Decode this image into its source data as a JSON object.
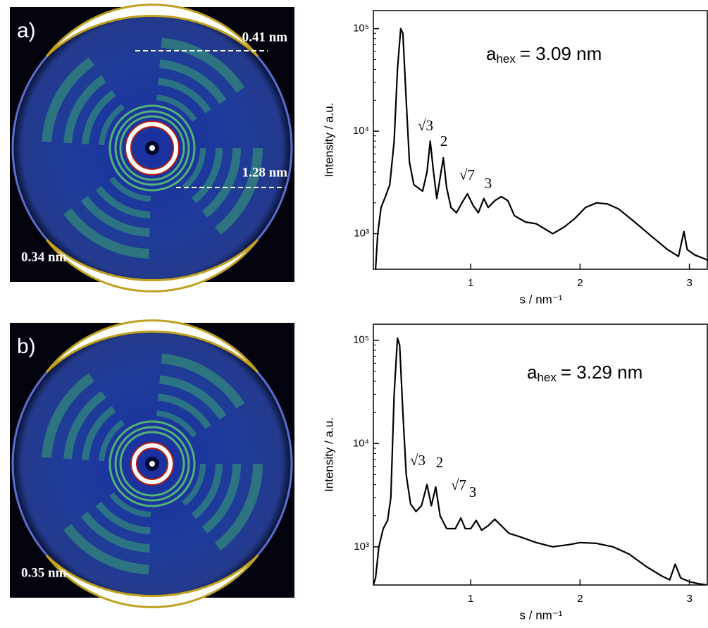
{
  "images": [
    {
      "label": "a)",
      "annotations": [
        "0.41 nm",
        "1.28 nm",
        "0.34 nm"
      ]
    },
    {
      "label": "b)",
      "annotations": [
        "0.35 nm"
      ]
    }
  ],
  "chart_data": [
    {
      "type": "line",
      "color": "#000000",
      "log_y": true,
      "x_label": "s / nm⁻¹",
      "y_label": "Intensity / a.u.",
      "annotation": {
        "symbol": "a",
        "subscript": "hex",
        "text": "=  3.09 nm"
      },
      "peak_labels": [
        "√3",
        "2",
        "√7",
        "3"
      ],
      "xlim": [
        0.11,
        3.17
      ],
      "xticks": [
        1,
        2,
        3
      ],
      "ylim": [
        450,
        150000
      ],
      "yticks": [
        {
          "value": 1000,
          "label": "10³"
        },
        {
          "value": 10000,
          "label": "10⁴"
        },
        {
          "value": 100000,
          "label": "10⁵"
        }
      ],
      "x": [
        0.13,
        0.15,
        0.18,
        0.22,
        0.26,
        0.3,
        0.33,
        0.36,
        0.38,
        0.41,
        0.44,
        0.48,
        0.52,
        0.56,
        0.6,
        0.63,
        0.66,
        0.69,
        0.72,
        0.75,
        0.78,
        0.82,
        0.87,
        0.92,
        0.97,
        1.02,
        1.07,
        1.12,
        1.16,
        1.22,
        1.28,
        1.34,
        1.4,
        1.5,
        1.6,
        1.75,
        1.85,
        1.95,
        2.05,
        2.15,
        2.25,
        2.35,
        2.5,
        2.65,
        2.8,
        2.9,
        2.95,
        2.98,
        3.05,
        3.12,
        3.17
      ],
      "values": [
        450,
        1000,
        1800,
        2300,
        3000,
        8000,
        40000,
        100000,
        90000,
        20000,
        5000,
        3000,
        2800,
        2600,
        4000,
        8000,
        4000,
        2200,
        3500,
        5500,
        2800,
        1800,
        1600,
        2000,
        2450,
        1900,
        1600,
        2200,
        1800,
        2100,
        2300,
        2100,
        1500,
        1300,
        1250,
        1000,
        1150,
        1400,
        1800,
        2000,
        1950,
        1750,
        1300,
        950,
        700,
        600,
        1050,
        700,
        620,
        580,
        550
      ]
    },
    {
      "type": "line",
      "color": "#000000",
      "log_y": true,
      "x_label": "s / nm⁻¹",
      "y_label": "Intensity / a.u.",
      "annotation": {
        "symbol": "a",
        "subscript": "hex",
        "text": "=  3.29 nm"
      },
      "peak_labels": [
        "√3",
        "2",
        "√7",
        "3"
      ],
      "xlim": [
        0.11,
        3.17
      ],
      "xticks": [
        1,
        2,
        3
      ],
      "ylim": [
        427,
        143000
      ],
      "yticks": [
        {
          "value": 1000,
          "label": "10³"
        },
        {
          "value": 10000,
          "label": "10⁴"
        },
        {
          "value": 100000,
          "label": "10⁵"
        }
      ],
      "x": [
        0.11,
        0.13,
        0.16,
        0.2,
        0.24,
        0.27,
        0.3,
        0.33,
        0.35,
        0.38,
        0.41,
        0.45,
        0.5,
        0.55,
        0.6,
        0.64,
        0.68,
        0.72,
        0.78,
        0.86,
        0.91,
        0.95,
        1.0,
        1.05,
        1.1,
        1.16,
        1.22,
        1.28,
        1.35,
        1.45,
        1.6,
        1.75,
        1.9,
        2.0,
        2.15,
        2.3,
        2.45,
        2.6,
        2.75,
        2.82,
        2.87,
        2.92,
        3.0,
        3.08,
        3.15
      ],
      "values": [
        430,
        500,
        1000,
        1500,
        1800,
        3000,
        30000,
        105000,
        90000,
        20000,
        5000,
        2600,
        2200,
        2500,
        4000,
        2500,
        3800,
        2000,
        1500,
        1500,
        1900,
        1500,
        1500,
        1800,
        1450,
        1600,
        1850,
        1600,
        1350,
        1250,
        1100,
        1000,
        1050,
        1100,
        1080,
        1000,
        850,
        650,
        520,
        480,
        680,
        500,
        460,
        440,
        430
      ]
    }
  ]
}
